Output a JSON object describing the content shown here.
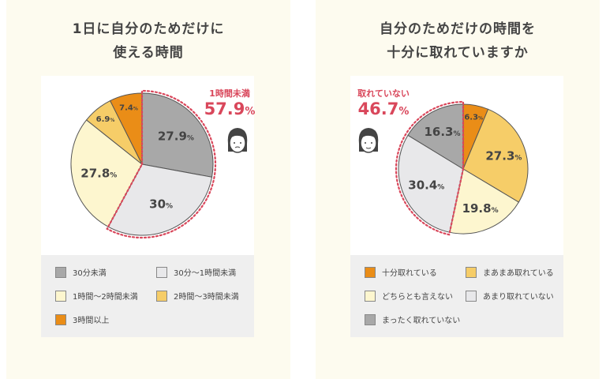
{
  "left": {
    "title_line1": "1日に自分のためだけに",
    "title_line2": "使える時間",
    "callout_label": "1時間未満",
    "callout_value": "57.9",
    "callout_unit": "%",
    "chart_data": {
      "type": "pie",
      "categories": [
        "30分未満",
        "30分〜1時間未満",
        "1時間〜2時間未満",
        "2時間〜3時間未満",
        "3時間以上"
      ],
      "values": [
        27.9,
        30,
        27.8,
        6.9,
        7.4
      ],
      "labels": [
        "27.9",
        "30",
        "27.8",
        "6.9",
        "7.4"
      ],
      "unit": "%",
      "colors": [
        "#a8a8a8",
        "#e8e8ea",
        "#fdf6cf",
        "#f6cd68",
        "#ea8d17"
      ],
      "start": "12 o'clock",
      "direction": "clockwise",
      "highlight": "30分未満 + 30分〜1時間未満 (dashed outline)"
    },
    "legend": [
      {
        "label": "30分未満",
        "color": "#a8a8a8"
      },
      {
        "label": "30分〜1時間未満",
        "color": "#e8e8ea"
      },
      {
        "label": "1時間〜2時間未満",
        "color": "#fdf6cf"
      },
      {
        "label": "2時間〜3時間未満",
        "color": "#f6cd68"
      },
      {
        "label": "3時間以上",
        "color": "#ea8d17"
      }
    ]
  },
  "right": {
    "title_line1": "自分のためだけの時間を",
    "title_line2": "十分に取れていますか",
    "callout_label": "取れていない",
    "callout_value": "46.7",
    "callout_unit": "%",
    "chart_data": {
      "type": "pie",
      "categories": [
        "十分取れている",
        "まあまあ取れている",
        "どちらとも言えない",
        "あまり取れていない",
        "まったく取れていない"
      ],
      "values": [
        6.3,
        27.3,
        19.8,
        30.4,
        16.3
      ],
      "labels": [
        "6.3",
        "27.3",
        "19.8",
        "30.4",
        "16.3"
      ],
      "unit": "%",
      "colors": [
        "#ea8d17",
        "#f6cd68",
        "#fdf6cf",
        "#e8e8ea",
        "#a8a8a8"
      ],
      "start": "12 o'clock",
      "direction": "clockwise",
      "highlight": "あまり取れていない + まったく取れていない (dashed outline)"
    },
    "legend": [
      {
        "label": "十分取れている",
        "color": "#ea8d17"
      },
      {
        "label": "まあまあ取れている",
        "color": "#f6cd68"
      },
      {
        "label": "どちらとも言えない",
        "color": "#fdf6cf"
      },
      {
        "label": "あまり取れていない",
        "color": "#e8e8ea"
      },
      {
        "label": "まったく取れていない",
        "color": "#a8a8a8"
      }
    ]
  },
  "accent_color": "#d9475b"
}
